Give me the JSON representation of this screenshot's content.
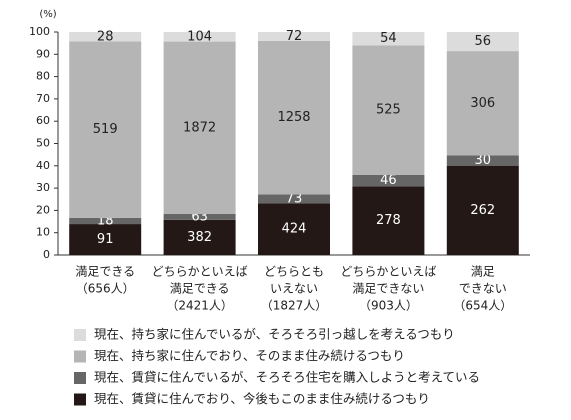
{
  "chart_data": {
    "type": "bar",
    "stacking": "percent",
    "y_unit_label": "(%)",
    "categories": [
      [
        "満足できる",
        "（656人）"
      ],
      [
        "どちらかといえば",
        "満足できる",
        "（2421人）"
      ],
      [
        "どちらとも",
        "いえない",
        "（1827人）"
      ],
      [
        "どちらかといえば",
        "満足できない",
        "（903人）"
      ],
      [
        "満足",
        "できない",
        "（654人）"
      ]
    ],
    "series": [
      {
        "name": "現在、賃貸に住んでおり、今後もこのまま住み続けるつもり",
        "color": "#231815",
        "label_color": "#ffffff",
        "values": [
          91,
          382,
          424,
          278,
          262
        ]
      },
      {
        "name": "現在、賃貸に住んでいるが、そろそろ住宅を購入しようと考えている",
        "color": "#666666",
        "label_color": "#ffffff",
        "values": [
          18,
          63,
          73,
          46,
          30
        ]
      },
      {
        "name": "現在、持ち家に住んでおり、そのまま住み続けるつもり",
        "color": "#b5b5b5",
        "label_color": "#222222",
        "values": [
          519,
          1872,
          1258,
          525,
          306
        ]
      },
      {
        "name": "現在、持ち家に住んでいるが、そろそろ引っ越しを考えるつもり",
        "color": "#dcdcdc",
        "label_color": "#222222",
        "values": [
          28,
          104,
          72,
          54,
          56
        ]
      }
    ],
    "ylim": [
      0,
      100
    ],
    "yticks": [
      0,
      10,
      20,
      30,
      40,
      50,
      60,
      70,
      80,
      90,
      100
    ]
  }
}
